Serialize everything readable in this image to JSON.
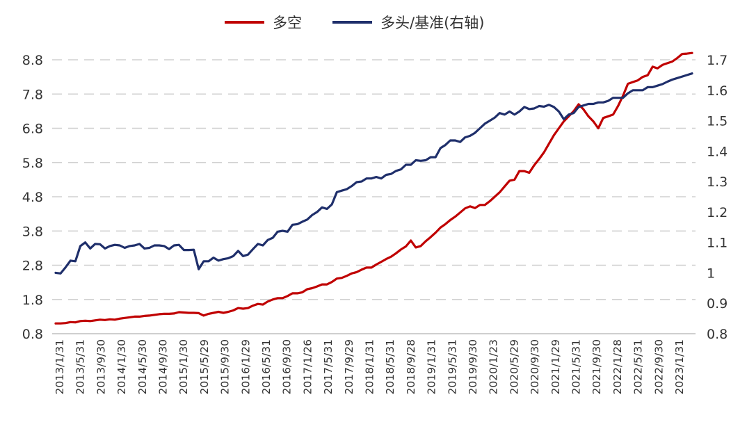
{
  "chart_data": {
    "type": "line",
    "legend_position": "top-center",
    "grid": true,
    "series": [
      {
        "name": "多空",
        "axis": "left",
        "color": "#C00000",
        "values": [
          1.1,
          1.1,
          1.11,
          1.14,
          1.13,
          1.17,
          1.18,
          1.17,
          1.19,
          1.21,
          1.2,
          1.22,
          1.21,
          1.24,
          1.26,
          1.28,
          1.3,
          1.3,
          1.32,
          1.33,
          1.35,
          1.37,
          1.38,
          1.38,
          1.39,
          1.43,
          1.42,
          1.41,
          1.41,
          1.4,
          1.33,
          1.38,
          1.41,
          1.44,
          1.41,
          1.44,
          1.48,
          1.55,
          1.53,
          1.55,
          1.62,
          1.67,
          1.65,
          1.74,
          1.8,
          1.84,
          1.84,
          1.9,
          1.98,
          1.98,
          2.01,
          2.1,
          2.13,
          2.18,
          2.24,
          2.24,
          2.31,
          2.41,
          2.43,
          2.49,
          2.56,
          2.6,
          2.67,
          2.73,
          2.73,
          2.82,
          2.9,
          2.98,
          3.05,
          3.15,
          3.26,
          3.35,
          3.52,
          3.32,
          3.36,
          3.5,
          3.62,
          3.75,
          3.9,
          4.0,
          4.12,
          4.22,
          4.34,
          4.46,
          4.52,
          4.47,
          4.56,
          4.56,
          4.67,
          4.8,
          4.93,
          5.1,
          5.27,
          5.3,
          5.55,
          5.55,
          5.5,
          5.72,
          5.9,
          6.1,
          6.35,
          6.6,
          6.8,
          7.0,
          7.15,
          7.3,
          7.5,
          7.35,
          7.15,
          7.0,
          6.8,
          7.1,
          7.15,
          7.2,
          7.45,
          7.75,
          8.1,
          8.15,
          8.2,
          8.3,
          8.35,
          8.6,
          8.55,
          8.65,
          8.7,
          8.75,
          8.85,
          8.97,
          8.98,
          9.0
        ]
      },
      {
        "name": "多头/基准(右轴)",
        "axis": "right",
        "color": "#1F2F6B",
        "values": [
          1.0,
          0.998,
          1.018,
          1.04,
          1.038,
          1.088,
          1.1,
          1.08,
          1.095,
          1.094,
          1.08,
          1.088,
          1.092,
          1.09,
          1.082,
          1.088,
          1.09,
          1.095,
          1.08,
          1.082,
          1.09,
          1.09,
          1.088,
          1.078,
          1.09,
          1.092,
          1.075,
          1.075,
          1.076,
          1.012,
          1.038,
          1.038,
          1.05,
          1.04,
          1.045,
          1.048,
          1.055,
          1.072,
          1.055,
          1.06,
          1.078,
          1.095,
          1.09,
          1.108,
          1.115,
          1.135,
          1.138,
          1.135,
          1.158,
          1.16,
          1.168,
          1.175,
          1.19,
          1.2,
          1.215,
          1.21,
          1.225,
          1.265,
          1.27,
          1.275,
          1.285,
          1.298,
          1.3,
          1.31,
          1.31,
          1.315,
          1.31,
          1.322,
          1.325,
          1.335,
          1.34,
          1.355,
          1.355,
          1.37,
          1.368,
          1.37,
          1.38,
          1.38,
          1.41,
          1.42,
          1.435,
          1.435,
          1.43,
          1.445,
          1.45,
          1.46,
          1.475,
          1.49,
          1.5,
          1.51,
          1.525,
          1.52,
          1.53,
          1.52,
          1.53,
          1.545,
          1.538,
          1.54,
          1.548,
          1.546,
          1.552,
          1.545,
          1.53,
          1.505,
          1.52,
          1.525,
          1.545,
          1.55,
          1.555,
          1.555,
          1.56,
          1.56,
          1.565,
          1.575,
          1.575,
          1.575,
          1.59,
          1.6,
          1.6,
          1.6,
          1.61,
          1.61,
          1.615,
          1.62,
          1.628,
          1.635,
          1.64,
          1.645,
          1.65,
          1.655
        ]
      }
    ],
    "left_axis": {
      "min": 0.8,
      "max": 8.8,
      "ticks": [
        "0.8",
        "1.8",
        "2.8",
        "3.8",
        "4.8",
        "5.8",
        "6.8",
        "7.8",
        "8.8"
      ]
    },
    "right_axis": {
      "min": 0.8,
      "max": 1.7,
      "ticks": [
        "0.8",
        "0.9",
        "1",
        "1.1",
        "1.2",
        "1.3",
        "1.4",
        "1.5",
        "1.6",
        "1.7"
      ]
    },
    "x_tick_labels": [
      "2013/1/31",
      "2013/5/31",
      "2013/9/30",
      "2014/1/30",
      "2014/5/30",
      "2014/9/30",
      "2015/1/30",
      "2015/5/29",
      "2015/9/30",
      "2016/1/29",
      "2016/5/31",
      "2016/9/30",
      "2017/1/26",
      "2017/5/31",
      "2017/9/29",
      "2018/1/31",
      "2018/5/31",
      "2018/9/28",
      "2019/1/31",
      "2019/5/31",
      "2019/9/30",
      "2020/1/23",
      "2020/5/29",
      "2020/9/30",
      "2021/1/29",
      "2021/5/31",
      "2021/9/30",
      "2022/1/28",
      "2022/5/31",
      "2022/9/30",
      "2023/1/31"
    ]
  }
}
